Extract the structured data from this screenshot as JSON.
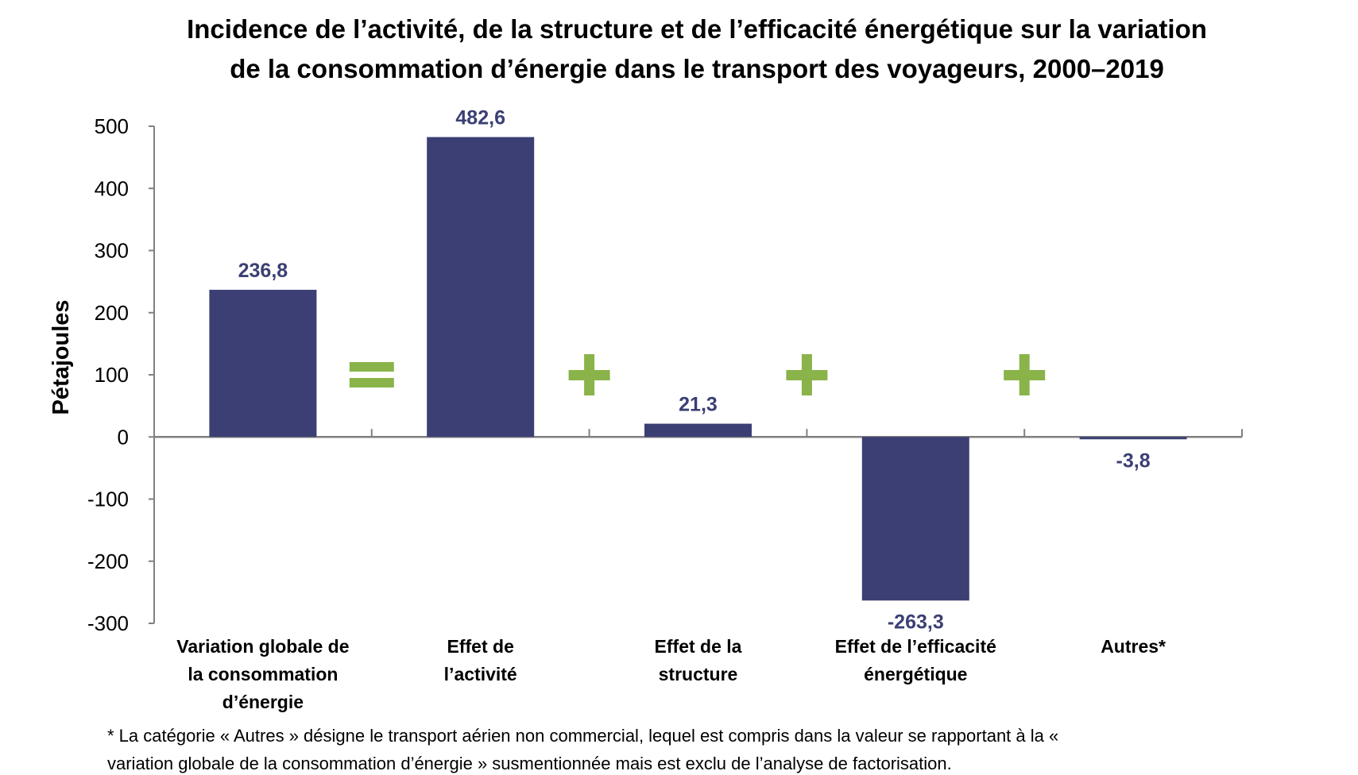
{
  "chart_data": {
    "type": "bar",
    "title": [
      "Incidence de l’activité, de la structure et de l’efficacité énergétique sur la variation",
      "de la consommation d’énergie dans le transport des voyageurs, 2000–2019"
    ],
    "xlabel": "",
    "ylabel": "Pétajoules",
    "ylim": [
      -300,
      500
    ],
    "yticks": [
      500,
      400,
      300,
      200,
      100,
      0,
      -100,
      -200,
      -300
    ],
    "categories": [
      [
        "Variation globale de",
        "la consommation",
        "d’énergie"
      ],
      [
        "Effet de",
        "l’activité"
      ],
      [
        "Effet de la",
        "structure"
      ],
      [
        "Effet de l’efficacité",
        "énergétique"
      ],
      [
        "Autres*"
      ]
    ],
    "values": [
      236.8,
      482.6,
      21.3,
      -263.3,
      -3.8
    ],
    "data_labels": [
      "236,8",
      "482,6",
      "21,3",
      "-263,3",
      "-3,8"
    ],
    "operators": [
      "=",
      "+",
      "+",
      "+"
    ],
    "grid": false,
    "legend": "none",
    "colors": {
      "bar": "#3b3f73",
      "operator": "#8ab34a",
      "axis": "#808080"
    },
    "footnote": [
      "* La catégorie « Autres » désigne le transport aérien non commercial, lequel est compris dans la valeur se rapportant à la «",
      "variation globale de la consommation d’énergie » susmentionnée mais est exclu de l’analyse de factorisation."
    ]
  }
}
